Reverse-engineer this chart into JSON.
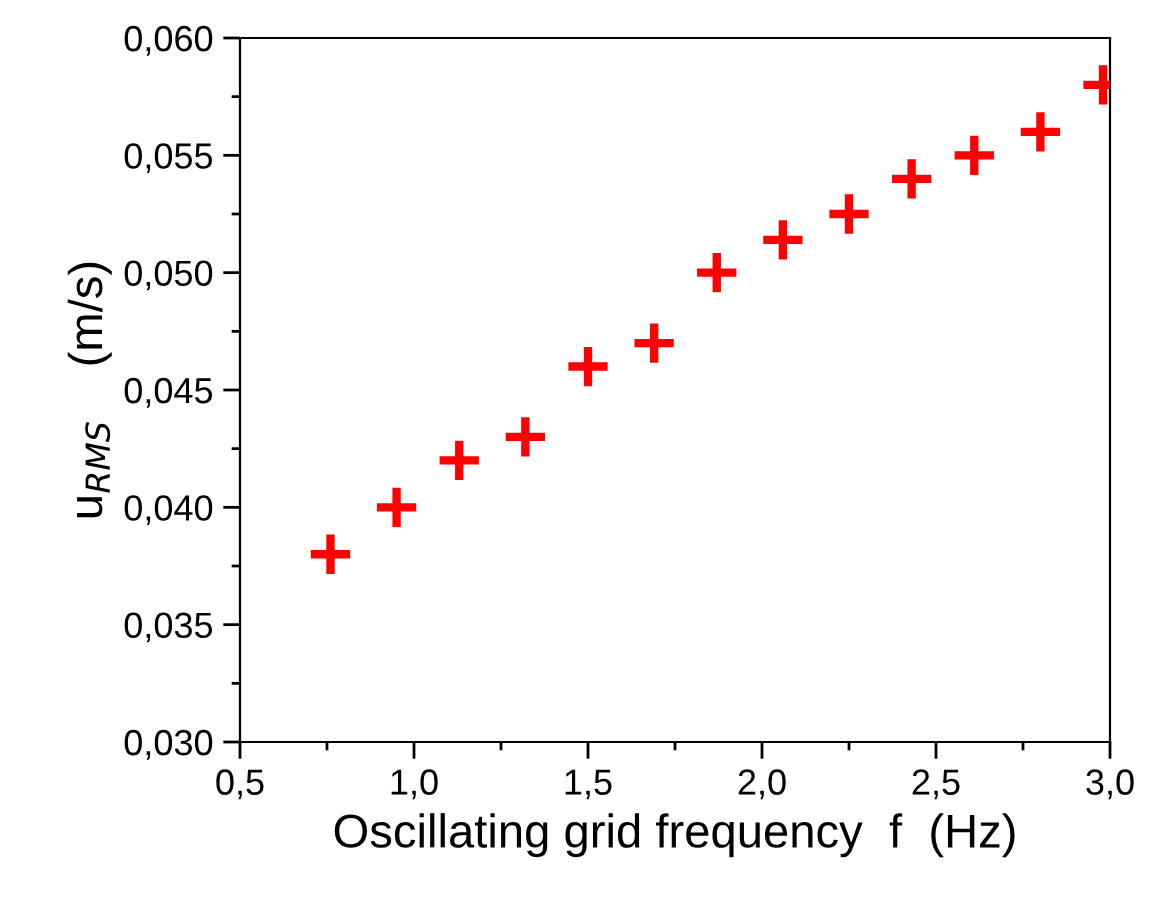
{
  "chart_data": {
    "type": "scatter",
    "xlabel": "Oscillating grid frequency  f  (Hz)",
    "ylabel": "u$_{RMS}$    (m/s)",
    "x": [
      0.76,
      0.95,
      1.13,
      1.32,
      1.5,
      1.69,
      1.87,
      2.06,
      2.25,
      2.43,
      2.61,
      2.8,
      2.98
    ],
    "series": [
      {
        "color": "#ff0000",
        "values": [
          0.038,
          0.04,
          0.042,
          0.043,
          0.046,
          0.047,
          0.05,
          0.0514,
          0.0525,
          0.054,
          0.055,
          0.056,
          0.058
        ]
      }
    ],
    "marker": "cross",
    "xlim": [
      0.5,
      3.0
    ],
    "ylim": [
      0.03,
      0.06
    ],
    "xticks": [
      {
        "value": 0.5,
        "label": "0,5"
      },
      {
        "value": 1.0,
        "label": "1,0"
      },
      {
        "value": 1.5,
        "label": "1,5"
      },
      {
        "value": 2.0,
        "label": "2,0"
      },
      {
        "value": 2.5,
        "label": "2,5"
      },
      {
        "value": 3.0,
        "label": "3,0"
      }
    ],
    "yticks": [
      {
        "value": 0.03,
        "label": "0,030"
      },
      {
        "value": 0.035,
        "label": "0,035"
      },
      {
        "value": 0.04,
        "label": "0,040"
      },
      {
        "value": 0.045,
        "label": "0,045"
      },
      {
        "value": 0.05,
        "label": "0,050"
      },
      {
        "value": 0.055,
        "label": "0,055"
      },
      {
        "value": 0.06,
        "label": "0,060"
      }
    ],
    "grid": false,
    "legend": false
  }
}
